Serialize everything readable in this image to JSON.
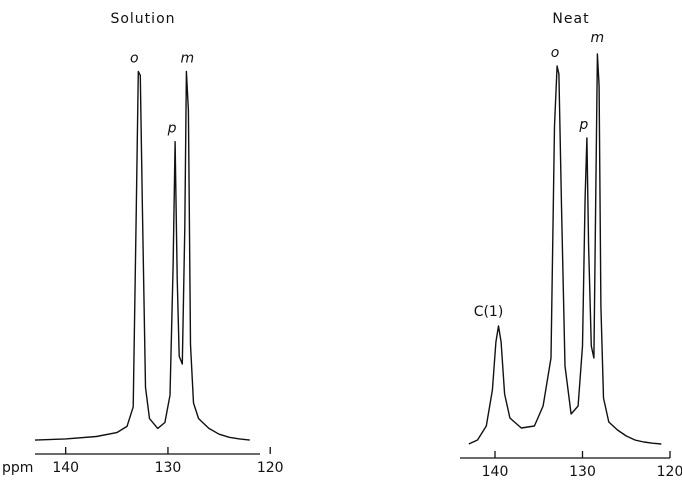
{
  "chart_data": [
    {
      "type": "line",
      "title": "Solution",
      "xlabel": "ppm",
      "x_reversed": true,
      "xlim": [
        143,
        121
      ],
      "x_ticks": [
        140,
        130,
        120
      ],
      "tick_labels": [
        "140",
        "130",
        "120"
      ],
      "peaks": [
        {
          "label": "o",
          "ppm": 132.8,
          "height": 0.95
        },
        {
          "label": "p",
          "ppm": 129.3,
          "height": 0.77
        },
        {
          "label": "m",
          "ppm": 128.2,
          "height": 0.95
        }
      ],
      "series": [
        {
          "x": [
            143,
            140,
            137,
            135,
            134,
            133.4,
            133.1,
            132.9,
            132.7,
            132.5,
            132.2,
            131.8,
            131.0,
            130.3,
            129.8,
            129.5,
            129.3,
            129.1,
            128.9,
            128.6,
            128.35,
            128.2,
            128.0,
            127.8,
            127.5,
            127.0,
            126.0,
            125.0,
            124.0,
            123.0,
            122.0
          ],
          "y": [
            0.005,
            0.008,
            0.014,
            0.024,
            0.04,
            0.09,
            0.6,
            0.95,
            0.94,
            0.6,
            0.14,
            0.06,
            0.035,
            0.05,
            0.12,
            0.45,
            0.77,
            0.42,
            0.22,
            0.2,
            0.55,
            0.95,
            0.85,
            0.25,
            0.1,
            0.06,
            0.035,
            0.02,
            0.012,
            0.008,
            0.005
          ]
        }
      ]
    },
    {
      "type": "line",
      "title": "Neat",
      "x_reversed": true,
      "xlim": [
        144,
        120
      ],
      "x_ticks": [
        140,
        130,
        120
      ],
      "tick_labels": [
        "140",
        "130",
        "120"
      ],
      "peaks": [
        {
          "label": "C(1)",
          "ppm": 139.6,
          "height": 0.3
        },
        {
          "label": "o",
          "ppm": 132.8,
          "height": 0.95
        },
        {
          "label": "p",
          "ppm": 129.5,
          "height": 0.77
        },
        {
          "label": "m",
          "ppm": 128.3,
          "height": 0.98
        }
      ],
      "series": [
        {
          "x": [
            143,
            142,
            141,
            140.3,
            139.9,
            139.6,
            139.3,
            138.9,
            138.3,
            137.0,
            135.5,
            134.5,
            133.6,
            133.2,
            132.9,
            132.7,
            132.4,
            132.0,
            131.3,
            130.5,
            130.0,
            129.7,
            129.5,
            129.3,
            129.0,
            128.7,
            128.45,
            128.3,
            128.1,
            127.9,
            127.6,
            127.0,
            126.0,
            125.0,
            124.0,
            123.0,
            122.0,
            121.0
          ],
          "y": [
            0.005,
            0.015,
            0.05,
            0.14,
            0.26,
            0.3,
            0.26,
            0.13,
            0.07,
            0.045,
            0.05,
            0.1,
            0.22,
            0.8,
            0.95,
            0.93,
            0.6,
            0.2,
            0.08,
            0.1,
            0.25,
            0.62,
            0.77,
            0.5,
            0.25,
            0.22,
            0.7,
            0.98,
            0.9,
            0.35,
            0.12,
            0.06,
            0.04,
            0.025,
            0.015,
            0.01,
            0.007,
            0.005
          ]
        }
      ]
    }
  ]
}
